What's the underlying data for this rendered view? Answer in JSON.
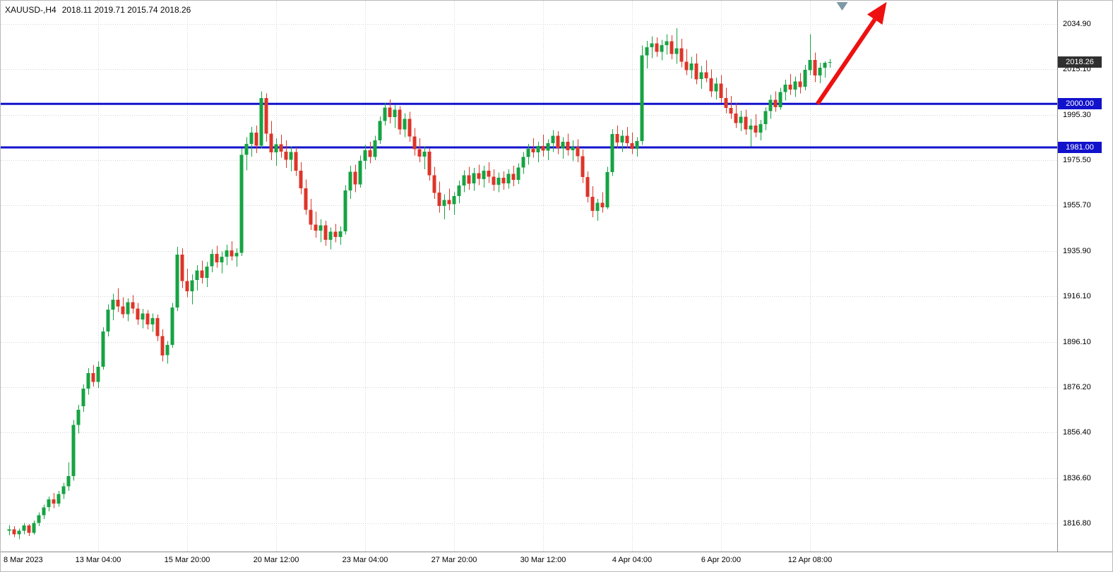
{
  "header": {
    "symbol_period": "XAUUSD-,H4",
    "ohlc_values": "2018.11 2019.71 2015.74 2018.26"
  },
  "price_scale": {
    "current_tag": "2018.26"
  },
  "chart_data": {
    "type": "candlestick",
    "symbol": "XAUUSD",
    "timeframe": "H4",
    "title": "",
    "ohlc_current": {
      "open": 2018.11,
      "high": 2019.71,
      "low": 2015.74,
      "close": 2018.26
    },
    "y_axis": {
      "grid_prices": [
        2034.9,
        2015.1,
        1995.3,
        1975.5,
        1955.7,
        1935.9,
        1916.1,
        1896.1,
        1876.2,
        1856.4,
        1836.6,
        1816.8
      ]
    },
    "x_axis": {
      "labels": [
        "8 Mar 2023",
        "13 Mar 04:00",
        "15 Mar 20:00",
        "20 Mar 12:00",
        "23 Mar 04:00",
        "27 Mar 20:00",
        "30 Mar 12:00",
        "4 Apr 04:00",
        "6 Apr 20:00",
        "12 Apr 08:00"
      ],
      "grid_bar_indices": [
        18,
        36,
        54,
        72,
        90,
        108,
        126,
        144,
        162
      ]
    },
    "horizontal_lines": [
      {
        "price": 2000.0,
        "label": "2000.00"
      },
      {
        "price": 1981.0,
        "label": "1981.00"
      }
    ],
    "colors": {
      "up": "#16a343",
      "down": "#dd3529",
      "grid": "#d4d4d4",
      "hline": "#1212cc",
      "hline_tag_bg": "#1212cc",
      "current_tag_bg": "#2f2f2f",
      "arrow": "#ee1111",
      "marker": "#7e98a6"
    },
    "candles": [
      [
        1813.5,
        1816.0,
        1811.5,
        1814.2
      ],
      [
        1814.2,
        1815.5,
        1810.8,
        1812.0
      ],
      [
        1812.0,
        1814.5,
        1809.8,
        1813.6
      ],
      [
        1813.6,
        1817.0,
        1812.0,
        1815.8
      ],
      [
        1815.8,
        1816.5,
        1811.2,
        1812.6
      ],
      [
        1812.6,
        1818.0,
        1811.8,
        1817.0
      ],
      [
        1817.0,
        1821.5,
        1815.5,
        1820.4
      ],
      [
        1820.4,
        1825.0,
        1818.6,
        1823.8
      ],
      [
        1823.8,
        1828.5,
        1822.0,
        1827.2
      ],
      [
        1827.2,
        1830.0,
        1823.5,
        1825.4
      ],
      [
        1825.4,
        1831.0,
        1824.0,
        1829.6
      ],
      [
        1829.6,
        1834.5,
        1827.5,
        1833.0
      ],
      [
        1833.0,
        1843.5,
        1831.0,
        1837.4
      ],
      [
        1837.4,
        1862.0,
        1835.5,
        1859.8
      ],
      [
        1859.8,
        1868.5,
        1856.0,
        1866.4
      ],
      [
        1868.0,
        1877.5,
        1865.5,
        1875.6
      ],
      [
        1875.6,
        1884.5,
        1873.0,
        1882.4
      ],
      [
        1882.4,
        1886.0,
        1876.5,
        1878.6
      ],
      [
        1878.6,
        1887.5,
        1876.0,
        1885.2
      ],
      [
        1885.2,
        1902.5,
        1884.0,
        1900.6
      ],
      [
        1900.6,
        1912.5,
        1898.5,
        1910.2
      ],
      [
        1910.2,
        1917.0,
        1905.5,
        1914.4
      ],
      [
        1914.4,
        1919.5,
        1909.0,
        1911.6
      ],
      [
        1911.6,
        1915.5,
        1906.5,
        1908.2
      ],
      [
        1908.2,
        1915.0,
        1905.0,
        1913.4
      ],
      [
        1913.4,
        1916.5,
        1908.5,
        1910.6
      ],
      [
        1910.6,
        1913.0,
        1903.5,
        1905.8
      ],
      [
        1905.8,
        1910.5,
        1902.0,
        1908.4
      ],
      [
        1908.4,
        1910.0,
        1901.5,
        1903.6
      ],
      [
        1903.6,
        1908.5,
        1900.5,
        1906.4
      ],
      [
        1906.4,
        1908.0,
        1896.5,
        1898.6
      ],
      [
        1898.6,
        1901.5,
        1887.5,
        1890.2
      ],
      [
        1890.2,
        1896.5,
        1886.5,
        1894.8
      ],
      [
        1894.8,
        1913.0,
        1893.5,
        1911.0
      ],
      [
        1911.0,
        1937.5,
        1909.5,
        1934.2
      ],
      [
        1934.2,
        1937.0,
        1919.5,
        1922.6
      ],
      [
        1922.6,
        1928.0,
        1915.5,
        1918.2
      ],
      [
        1918.2,
        1925.5,
        1912.5,
        1923.0
      ],
      [
        1923.0,
        1929.5,
        1918.5,
        1927.2
      ],
      [
        1927.2,
        1931.5,
        1921.5,
        1924.0
      ],
      [
        1924.0,
        1931.0,
        1920.0,
        1929.0
      ],
      [
        1929.0,
        1936.5,
        1926.5,
        1934.4
      ],
      [
        1934.4,
        1938.0,
        1928.5,
        1930.8
      ],
      [
        1930.8,
        1935.5,
        1926.0,
        1933.2
      ],
      [
        1933.2,
        1938.5,
        1929.5,
        1936.0
      ],
      [
        1936.0,
        1940.0,
        1931.5,
        1933.4
      ],
      [
        1933.4,
        1937.0,
        1929.0,
        1935.0
      ],
      [
        1935.0,
        1980.5,
        1933.5,
        1977.8
      ],
      [
        1977.8,
        1985.5,
        1971.0,
        1982.6
      ],
      [
        1982.6,
        1990.0,
        1977.0,
        1987.4
      ],
      [
        1987.4,
        1990.5,
        1978.5,
        1981.8
      ],
      [
        1981.8,
        2005.5,
        1980.5,
        2002.6
      ],
      [
        2002.6,
        2004.5,
        1983.5,
        1987.0
      ],
      [
        1987.0,
        1992.5,
        1975.5,
        1978.8
      ],
      [
        1978.8,
        1985.0,
        1973.0,
        1982.4
      ],
      [
        1982.4,
        1986.5,
        1976.5,
        1979.2
      ],
      [
        1979.2,
        1984.0,
        1972.0,
        1975.6
      ],
      [
        1975.6,
        1981.5,
        1970.5,
        1979.0
      ],
      [
        1979.0,
        1981.0,
        1968.5,
        1970.8
      ],
      [
        1970.8,
        1974.5,
        1960.5,
        1963.2
      ],
      [
        1963.2,
        1967.0,
        1951.5,
        1953.8
      ],
      [
        1953.8,
        1958.5,
        1945.0,
        1947.2
      ],
      [
        1947.2,
        1953.0,
        1941.5,
        1944.6
      ],
      [
        1944.6,
        1949.5,
        1939.5,
        1947.0
      ],
      [
        1947.0,
        1949.0,
        1938.0,
        1940.6
      ],
      [
        1940.6,
        1946.0,
        1936.5,
        1944.2
      ],
      [
        1944.2,
        1947.5,
        1939.5,
        1941.8
      ],
      [
        1941.8,
        1946.5,
        1938.5,
        1944.4
      ],
      [
        1944.4,
        1964.5,
        1943.0,
        1962.2
      ],
      [
        1962.2,
        1973.0,
        1958.5,
        1970.4
      ],
      [
        1970.4,
        1973.5,
        1961.5,
        1964.8
      ],
      [
        1964.8,
        1977.5,
        1963.5,
        1975.2
      ],
      [
        1975.2,
        1982.0,
        1971.5,
        1979.8
      ],
      [
        1979.8,
        1983.5,
        1974.0,
        1976.8
      ],
      [
        1976.8,
        1986.0,
        1975.5,
        1984.0
      ],
      [
        1984.0,
        1994.5,
        1982.5,
        1992.6
      ],
      [
        1992.6,
        2000.5,
        1990.5,
        1998.4
      ],
      [
        1998.4,
        2002.0,
        1991.5,
        1994.2
      ],
      [
        1994.2,
        1999.5,
        1989.5,
        1997.4
      ],
      [
        1997.4,
        1999.0,
        1986.5,
        1988.8
      ],
      [
        1988.8,
        1996.0,
        1985.5,
        1993.4
      ],
      [
        1993.4,
        1996.5,
        1983.5,
        1985.8
      ],
      [
        1985.8,
        1989.5,
        1977.5,
        1980.2
      ],
      [
        1980.2,
        1985.0,
        1974.5,
        1977.0
      ],
      [
        1977.0,
        1981.5,
        1971.5,
        1979.2
      ],
      [
        1979.2,
        1980.5,
        1966.5,
        1968.8
      ],
      [
        1968.8,
        1972.5,
        1958.5,
        1961.2
      ],
      [
        1961.2,
        1966.0,
        1952.5,
        1955.4
      ],
      [
        1955.4,
        1960.5,
        1949.5,
        1958.0
      ],
      [
        1958.0,
        1963.0,
        1953.5,
        1956.2
      ],
      [
        1956.2,
        1961.5,
        1951.5,
        1959.8
      ],
      [
        1959.8,
        1966.5,
        1956.5,
        1964.4
      ],
      [
        1964.4,
        1971.0,
        1961.5,
        1968.8
      ],
      [
        1968.8,
        1972.5,
        1962.5,
        1965.2
      ],
      [
        1965.2,
        1972.0,
        1962.0,
        1969.8
      ],
      [
        1969.8,
        1973.5,
        1964.5,
        1967.2
      ],
      [
        1967.2,
        1973.0,
        1963.5,
        1970.8
      ],
      [
        1970.8,
        1974.5,
        1965.5,
        1968.2
      ],
      [
        1968.2,
        1971.5,
        1962.0,
        1964.6
      ],
      [
        1964.6,
        1970.0,
        1961.5,
        1967.8
      ],
      [
        1967.8,
        1970.5,
        1962.5,
        1965.2
      ],
      [
        1965.2,
        1971.5,
        1963.0,
        1969.4
      ],
      [
        1969.4,
        1973.0,
        1964.0,
        1966.8
      ],
      [
        1966.8,
        1974.0,
        1965.0,
        1972.2
      ],
      [
        1972.2,
        1979.0,
        1969.5,
        1976.8
      ],
      [
        1976.8,
        1982.5,
        1973.5,
        1980.4
      ],
      [
        1980.4,
        1985.0,
        1976.5,
        1978.8
      ],
      [
        1978.8,
        1983.5,
        1974.5,
        1981.6
      ],
      [
        1981.6,
        1986.5,
        1977.0,
        1979.6
      ],
      [
        1979.6,
        1984.5,
        1975.5,
        1982.8
      ],
      [
        1982.8,
        1988.5,
        1979.0,
        1986.0
      ],
      [
        1986.0,
        1988.0,
        1978.0,
        1980.6
      ],
      [
        1980.6,
        1985.5,
        1976.0,
        1983.4
      ],
      [
        1983.4,
        1987.0,
        1977.5,
        1979.8
      ],
      [
        1979.8,
        1984.0,
        1975.0,
        1981.2
      ],
      [
        1981.2,
        1984.5,
        1974.5,
        1977.2
      ],
      [
        1977.2,
        1980.0,
        1965.5,
        1968.0
      ],
      [
        1968.0,
        1970.5,
        1957.0,
        1959.4
      ],
      [
        1959.4,
        1964.0,
        1950.5,
        1953.2
      ],
      [
        1953.2,
        1958.5,
        1949.0,
        1956.8
      ],
      [
        1956.8,
        1961.5,
        1952.5,
        1954.8
      ],
      [
        1954.8,
        1972.5,
        1954.0,
        1970.2
      ],
      [
        1970.2,
        1989.0,
        1968.5,
        1986.8
      ],
      [
        1986.8,
        1990.5,
        1980.5,
        1983.2
      ],
      [
        1983.2,
        1988.5,
        1979.0,
        1986.0
      ],
      [
        1986.0,
        1990.0,
        1980.5,
        1982.8
      ],
      [
        1982.8,
        1987.5,
        1978.0,
        1980.4
      ],
      [
        1980.4,
        1985.5,
        1977.0,
        1983.8
      ],
      [
        1983.8,
        2025.5,
        1982.0,
        2021.2
      ],
      [
        2021.2,
        2027.5,
        2015.5,
        2024.8
      ],
      [
        2024.8,
        2029.5,
        2020.0,
        2026.4
      ],
      [
        2026.4,
        2029.0,
        2020.5,
        2022.8
      ],
      [
        2022.8,
        2028.0,
        2019.0,
        2025.6
      ],
      [
        2025.6,
        2030.5,
        2021.5,
        2027.4
      ],
      [
        2027.4,
        2030.0,
        2019.5,
        2021.8
      ],
      [
        2021.8,
        2033.0,
        2017.5,
        2024.2
      ],
      [
        2024.2,
        2028.5,
        2016.0,
        2018.4
      ],
      [
        2018.4,
        2024.0,
        2012.5,
        2014.8
      ],
      [
        2014.8,
        2020.5,
        2011.0,
        2017.6
      ],
      [
        2017.6,
        2022.0,
        2008.5,
        2010.8
      ],
      [
        2010.8,
        2016.5,
        2006.5,
        2013.8
      ],
      [
        2013.8,
        2019.0,
        2009.5,
        2011.2
      ],
      [
        2011.2,
        2015.0,
        2003.0,
        2005.4
      ],
      [
        2005.4,
        2011.5,
        2002.0,
        2008.8
      ],
      [
        2008.8,
        2012.5,
        2000.5,
        2002.6
      ],
      [
        2002.6,
        2007.0,
        1996.0,
        1998.2
      ],
      [
        1998.2,
        2003.5,
        1993.5,
        1995.8
      ],
      [
        1995.8,
        2000.5,
        1989.5,
        1991.6
      ],
      [
        1991.6,
        1997.0,
        1988.0,
        1994.4
      ],
      [
        1994.4,
        1997.5,
        1986.5,
        1988.8
      ],
      [
        1988.8,
        1993.5,
        1981.5,
        1990.6
      ],
      [
        1990.6,
        1995.5,
        1985.5,
        1987.4
      ],
      [
        1987.4,
        1993.0,
        1984.0,
        1991.2
      ],
      [
        1991.2,
        1998.5,
        1988.5,
        1996.8
      ],
      [
        1996.8,
        2004.0,
        1993.5,
        2001.8
      ],
      [
        2001.8,
        2005.5,
        1996.5,
        1998.6
      ],
      [
        1998.6,
        2007.0,
        1997.5,
        2005.2
      ],
      [
        2005.2,
        2010.5,
        2001.5,
        2008.4
      ],
      [
        2008.4,
        2013.0,
        2004.0,
        2006.2
      ],
      [
        2006.2,
        2012.0,
        2003.0,
        2009.8
      ],
      [
        2009.8,
        2013.5,
        2004.5,
        2007.4
      ],
      [
        2007.4,
        2017.0,
        2006.0,
        2014.8
      ],
      [
        2014.8,
        2030.5,
        2012.5,
        2019.2
      ],
      [
        2019.2,
        2022.5,
        2009.5,
        2012.4
      ],
      [
        2012.4,
        2018.0,
        2009.0,
        2015.8
      ],
      [
        2015.8,
        2018.5,
        2011.5,
        2017.9
      ],
      [
        2018.11,
        2019.71,
        2015.74,
        2018.26
      ]
    ]
  },
  "annotations": {
    "trend_arrow": {
      "type": "arrow-up-right",
      "color": "#ee1111",
      "from": {
        "bar": 163.5,
        "price": 2000.0
      },
      "to": {
        "bar": 177.5,
        "price": 2044.5
      }
    },
    "top_marker": {
      "type": "triangle-down",
      "color": "#7e98a6",
      "bar": 168.5,
      "price": 2044.0
    }
  }
}
